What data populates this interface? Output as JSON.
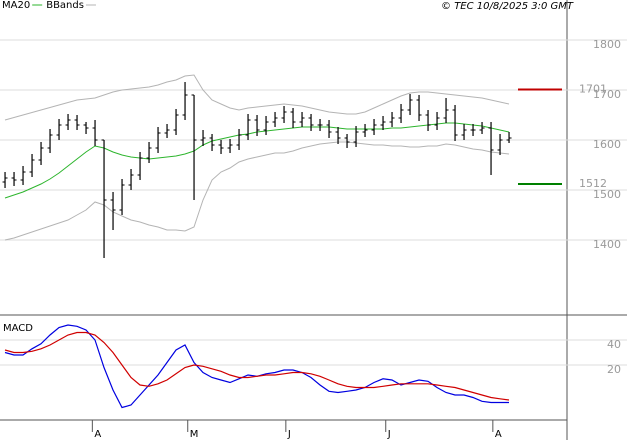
{
  "chart_data": [
    {
      "type": "ohlc",
      "annotation": "© TEC 10/8/2025 3:0 GMT",
      "xlim": [
        -0.56,
        62.44
      ],
      "ylim": [
        1250,
        1856
      ],
      "yticks": [
        1400,
        1500,
        1600,
        1700,
        1800
      ],
      "grid": true,
      "color": "#000000",
      "open": [
        1516,
        1524,
        1520,
        1536,
        1560,
        1584,
        1610,
        1630,
        1640,
        1630,
        1624,
        1600,
        1480,
        1460,
        1510,
        1530,
        1564,
        1584,
        1614,
        1620,
        1650,
        1690,
        1600,
        1604,
        1590,
        1584,
        1590,
        1610,
        1640,
        1620,
        1636,
        1644,
        1656,
        1636,
        1644,
        1630,
        1630,
        1616,
        1604,
        1596,
        1616,
        1620,
        1630,
        1636,
        1644,
        1660,
        1680,
        1650,
        1630,
        1644,
        1660,
        1610,
        1620,
        1620,
        1624,
        1580,
        1600
      ],
      "high": [
        1536,
        1536,
        1548,
        1572,
        1596,
        1622,
        1642,
        1652,
        1650,
        1636,
        1640,
        1600,
        1496,
        1522,
        1542,
        1576,
        1596,
        1626,
        1632,
        1662,
        1716,
        1690,
        1620,
        1612,
        1600,
        1602,
        1622,
        1652,
        1650,
        1648,
        1656,
        1668,
        1664,
        1656,
        1652,
        1642,
        1640,
        1626,
        1612,
        1628,
        1632,
        1642,
        1648,
        1656,
        1672,
        1692,
        1690,
        1660,
        1656,
        1684,
        1670,
        1632,
        1632,
        1636,
        1636,
        1612,
        1616
      ],
      "low": [
        1504,
        1508,
        1510,
        1526,
        1550,
        1574,
        1600,
        1620,
        1620,
        1612,
        1588,
        1364,
        1420,
        1450,
        1500,
        1520,
        1554,
        1574,
        1604,
        1610,
        1640,
        1480,
        1588,
        1578,
        1572,
        1574,
        1580,
        1600,
        1608,
        1610,
        1626,
        1634,
        1624,
        1626,
        1618,
        1618,
        1604,
        1592,
        1584,
        1586,
        1606,
        1610,
        1620,
        1626,
        1634,
        1650,
        1638,
        1618,
        1620,
        1634,
        1598,
        1600,
        1608,
        1612,
        1530,
        1570,
        1594
      ],
      "close": [
        1524,
        1520,
        1536,
        1560,
        1584,
        1610,
        1630,
        1640,
        1630,
        1624,
        1600,
        1480,
        1460,
        1510,
        1530,
        1564,
        1584,
        1614,
        1620,
        1650,
        1690,
        1600,
        1604,
        1590,
        1584,
        1590,
        1610,
        1640,
        1620,
        1636,
        1644,
        1656,
        1636,
        1644,
        1630,
        1630,
        1616,
        1604,
        1596,
        1616,
        1620,
        1630,
        1636,
        1644,
        1660,
        1680,
        1650,
        1630,
        1644,
        1660,
        1610,
        1620,
        1620,
        1624,
        1580,
        1600,
        1604
      ],
      "series": [
        {
          "name": "MA20",
          "color": "#2db52d",
          "values": [
            1484,
            1490,
            1496,
            1504,
            1512,
            1522,
            1534,
            1548,
            1562,
            1576,
            1588,
            1584,
            1576,
            1570,
            1566,
            1564,
            1562,
            1564,
            1566,
            1568,
            1572,
            1578,
            1590,
            1598,
            1602,
            1606,
            1610,
            1612,
            1616,
            1618,
            1620,
            1622,
            1624,
            1626,
            1626,
            1626,
            1626,
            1624,
            1622,
            1622,
            1622,
            1622,
            1622,
            1624,
            1624,
            1626,
            1628,
            1630,
            1632,
            1634,
            1634,
            1632,
            1630,
            1628,
            1624,
            1620,
            1616
          ]
        },
        {
          "name": "BBands",
          "color": "#b4b4b4",
          "upper": [
            1640,
            1645,
            1650,
            1655,
            1660,
            1665,
            1670,
            1675,
            1680,
            1682,
            1684,
            1690,
            1696,
            1700,
            1702,
            1704,
            1706,
            1710,
            1716,
            1720,
            1728,
            1730,
            1700,
            1680,
            1672,
            1664,
            1660,
            1664,
            1666,
            1668,
            1670,
            1672,
            1670,
            1668,
            1664,
            1660,
            1656,
            1654,
            1652,
            1652,
            1656,
            1664,
            1672,
            1680,
            1688,
            1694,
            1696,
            1696,
            1694,
            1692,
            1690,
            1688,
            1686,
            1684,
            1680,
            1676,
            1672
          ],
          "lower": [
            1400,
            1404,
            1410,
            1416,
            1422,
            1428,
            1434,
            1440,
            1450,
            1460,
            1476,
            1470,
            1456,
            1448,
            1440,
            1436,
            1430,
            1426,
            1420,
            1420,
            1418,
            1426,
            1480,
            1520,
            1536,
            1544,
            1556,
            1562,
            1566,
            1570,
            1574,
            1574,
            1578,
            1584,
            1588,
            1592,
            1594,
            1596,
            1596,
            1594,
            1592,
            1590,
            1590,
            1588,
            1588,
            1586,
            1586,
            1588,
            1588,
            1592,
            1590,
            1586,
            1582,
            1580,
            1576,
            1574,
            1572
          ]
        }
      ],
      "levels": [
        {
          "value": 1701,
          "color": "#c00000"
        },
        {
          "value": 1512,
          "color": "#008000"
        }
      ]
    },
    {
      "type": "line",
      "title": "MACD",
      "xlim": [
        -0.56,
        62.44
      ],
      "ylim": [
        -24,
        57.6
      ],
      "yticks": [
        20,
        40
      ],
      "grid": true,
      "xticks": [
        {
          "value": 9.7,
          "label": "A"
        },
        {
          "value": 20.3,
          "label": "M"
        },
        {
          "value": 31.2,
          "label": "J"
        },
        {
          "value": 42.3,
          "label": "J"
        },
        {
          "value": 54.2,
          "label": "A"
        }
      ],
      "series": [
        {
          "color": "#0000e0",
          "values": [
            30,
            28,
            28,
            33,
            37,
            44,
            50,
            52,
            51,
            48,
            40,
            18,
            0,
            -14,
            -12,
            -4,
            4,
            12,
            22,
            32,
            36,
            22,
            14,
            10,
            8,
            6,
            9,
            12,
            11,
            13,
            14,
            16,
            16,
            14,
            10,
            4,
            -1,
            -2,
            -1,
            0,
            2,
            6,
            9,
            8,
            4,
            6,
            8,
            7,
            2,
            -2,
            -4,
            -4,
            -6,
            -9,
            -10,
            -10,
            -10
          ]
        },
        {
          "color": "#d00000",
          "values": [
            32,
            30,
            30,
            31,
            33,
            36,
            40,
            44,
            46,
            46,
            44,
            38,
            30,
            20,
            10,
            4,
            3,
            5,
            8,
            13,
            18,
            20,
            19,
            17,
            15,
            12,
            10,
            10,
            11,
            12,
            12,
            13,
            14,
            14,
            13,
            11,
            8,
            5,
            3,
            2,
            2,
            2,
            3,
            4,
            5,
            5,
            5,
            5,
            4,
            3,
            2,
            0,
            -2,
            -4,
            -6,
            -7,
            -8
          ]
        }
      ]
    }
  ]
}
